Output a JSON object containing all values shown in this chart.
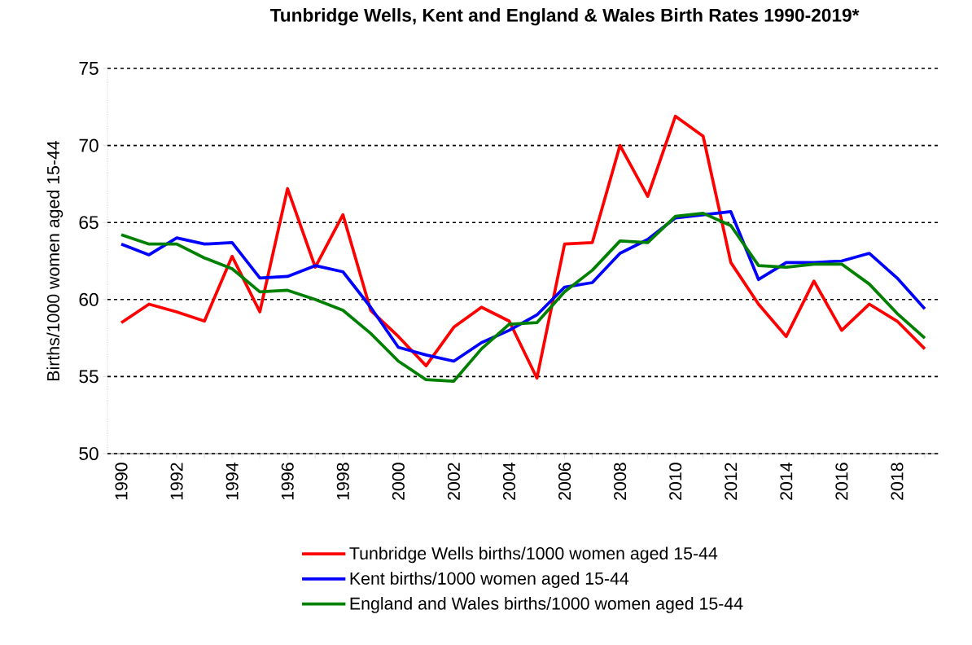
{
  "chart_data": {
    "type": "line",
    "title": "Tunbridge Wells, Kent and England & Wales Birth Rates 1990-2019*",
    "ylabel": "Births/1000 women aged 15-44",
    "x": [
      1990,
      1991,
      1992,
      1993,
      1994,
      1995,
      1996,
      1997,
      1998,
      1999,
      2000,
      2001,
      2002,
      2003,
      2004,
      2005,
      2006,
      2007,
      2008,
      2009,
      2010,
      2011,
      2012,
      2013,
      2014,
      2015,
      2016,
      2017,
      2018,
      2019
    ],
    "series": [
      {
        "name": "Tunbridge Wells births/1000 women aged 15-44",
        "color": "#ff0000",
        "values": [
          58.5,
          59.7,
          59.2,
          58.6,
          62.8,
          59.2,
          67.2,
          62.1,
          65.5,
          59.3,
          57.6,
          55.7,
          58.2,
          59.5,
          58.6,
          54.9,
          63.6,
          63.7,
          70.0,
          66.7,
          71.9,
          70.6,
          62.4,
          59.7,
          57.6,
          61.2,
          58.0,
          59.7,
          58.6,
          56.8
        ]
      },
      {
        "name": "Kent births/1000 women aged 15-44",
        "color": "#0000ff",
        "values": [
          63.6,
          62.9,
          64.0,
          63.6,
          63.7,
          61.4,
          61.5,
          62.2,
          61.8,
          59.5,
          56.9,
          56.4,
          56.0,
          57.2,
          58.0,
          59.0,
          60.8,
          61.1,
          63.0,
          63.9,
          65.3,
          65.5,
          65.7,
          61.3,
          62.4,
          62.4,
          62.5,
          63.0,
          61.4,
          59.4
        ]
      },
      {
        "name": "England and Wales births/1000 women aged 15-44",
        "color": "#008000",
        "values": [
          64.2,
          63.6,
          63.6,
          62.7,
          62.0,
          60.5,
          60.6,
          60.0,
          59.3,
          57.8,
          56.0,
          54.8,
          54.7,
          56.8,
          58.4,
          58.5,
          60.5,
          61.9,
          63.8,
          63.7,
          65.4,
          65.6,
          64.8,
          62.2,
          62.1,
          62.3,
          62.3,
          61.0,
          59.1,
          57.5
        ]
      }
    ],
    "xlim": [
      1989.5,
      2019.5
    ],
    "xticks": [
      1990,
      {
        "value": 1991,
        "label": null
      },
      1992,
      {
        "value": 1993,
        "label": null
      },
      1994,
      {
        "value": 1995,
        "label": null
      },
      1996,
      {
        "value": 1997,
        "label": null
      },
      1998,
      {
        "value": 1999,
        "label": null
      },
      2000,
      {
        "value": 2001,
        "label": null
      },
      2002,
      {
        "value": 2003,
        "label": null
      },
      2004,
      {
        "value": 2005,
        "label": null
      },
      2006,
      {
        "value": 2007,
        "label": null
      },
      2008,
      {
        "value": 2009,
        "label": null
      },
      2010,
      {
        "value": 2011,
        "label": null
      },
      2012,
      {
        "value": 2013,
        "label": null
      },
      2014,
      {
        "value": 2015,
        "label": null
      },
      2016,
      {
        "value": 2017,
        "label": null
      },
      2018,
      {
        "value": 2019,
        "label": null
      }
    ],
    "ylim": [
      50,
      75
    ],
    "yticks": [
      50,
      55,
      60,
      65,
      70,
      75
    ],
    "grid": "y",
    "legend": "bottom",
    "marker": "none",
    "line_style": "solid"
  }
}
